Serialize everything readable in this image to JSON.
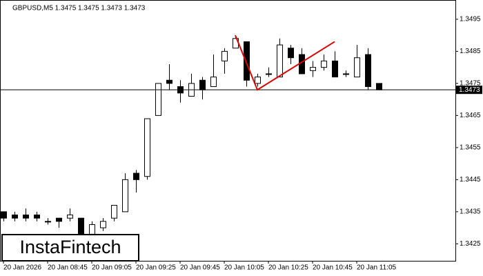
{
  "chart_data": {
    "type": "candlestick",
    "header": "GBPUSD,M5  1.3475 1.3475 1.3473 1.3473",
    "watermark": "InstaFintech",
    "categories": [
      "20 Jan 2026",
      null,
      null,
      null,
      "20 Jan 08:45",
      null,
      null,
      null,
      "20 Jan 09:05",
      null,
      null,
      null,
      "20 Jan 09:25",
      null,
      null,
      null,
      "20 Jan 09:45",
      null,
      null,
      null,
      "20 Jan 10:05",
      null,
      null,
      null,
      "20 Jan 10:25",
      null,
      null,
      null,
      "20 Jan 10:45",
      null,
      null,
      null,
      "20 Jan 11:05",
      null,
      null
    ],
    "open": [
      1.3435,
      1.3434,
      1.3434,
      1.3434,
      1.3432,
      1.3433,
      1.3433,
      1.3433,
      1.3428,
      1.343,
      1.3433,
      1.3435,
      1.3447,
      1.3446,
      1.3465,
      1.3476,
      1.3474,
      1.3471,
      1.3476,
      1.3474,
      1.3482,
      1.3486,
      1.3488,
      1.3475,
      1.3478,
      1.3477,
      1.3486,
      1.3484,
      1.3479,
      1.348,
      1.3482,
      1.3478,
      1.3477,
      1.3484,
      1.3475
    ],
    "high": [
      1.3435,
      1.3435,
      1.3436,
      1.3435,
      1.3433,
      1.3433,
      1.3436,
      1.3433,
      1.3432,
      1.3433,
      1.3437,
      1.3447,
      1.3448,
      1.3464,
      1.3475,
      1.3481,
      1.3476,
      1.3478,
      1.3477,
      1.3484,
      1.3486,
      1.349,
      1.3488,
      1.3478,
      1.348,
      1.3489,
      1.3487,
      1.3486,
      1.3482,
      1.3484,
      1.3485,
      1.3479,
      1.3487,
      1.3486,
      1.3475
    ],
    "low": [
      1.3432,
      1.3432,
      1.3432,
      1.3432,
      1.3431,
      1.343,
      1.3432,
      1.3426,
      1.3427,
      1.3429,
      1.3432,
      1.3435,
      1.3441,
      1.3445,
      1.3465,
      1.3473,
      1.3469,
      1.3471,
      1.347,
      1.3474,
      1.3478,
      1.3486,
      1.3474,
      1.3474,
      1.3477,
      1.3477,
      1.3481,
      1.3478,
      1.3477,
      1.3479,
      1.3477,
      1.3477,
      1.3477,
      1.3473,
      1.3473
    ],
    "close": [
      1.3433,
      1.3433,
      1.3433,
      1.3433,
      1.3432,
      1.3432,
      1.3434,
      1.3427,
      1.3431,
      1.3432,
      1.3437,
      1.3445,
      1.3445,
      1.3464,
      1.3475,
      1.3475,
      1.3472,
      1.3475,
      1.3473,
      1.3477,
      1.3485,
      1.3489,
      1.3476,
      1.3477,
      1.3478,
      1.3487,
      1.3483,
      1.3478,
      1.348,
      1.3482,
      1.3477,
      1.3478,
      1.3483,
      1.3474,
      1.3473
    ],
    "up_color": "#ffffff",
    "down_color": "#000000",
    "ylim": [
      1.34197,
      1.3501
    ],
    "yticks": [
      1.3425,
      1.3435,
      1.3445,
      1.3455,
      1.3465,
      1.3475,
      1.3485,
      1.3495
    ],
    "price_line": 1.3473,
    "pattern": {
      "color": "#e00000",
      "points": [
        {
          "x": 21,
          "y": 1.349
        },
        {
          "x": 23,
          "y": 1.3473
        },
        {
          "x": 30,
          "y": 1.3488
        }
      ]
    }
  }
}
